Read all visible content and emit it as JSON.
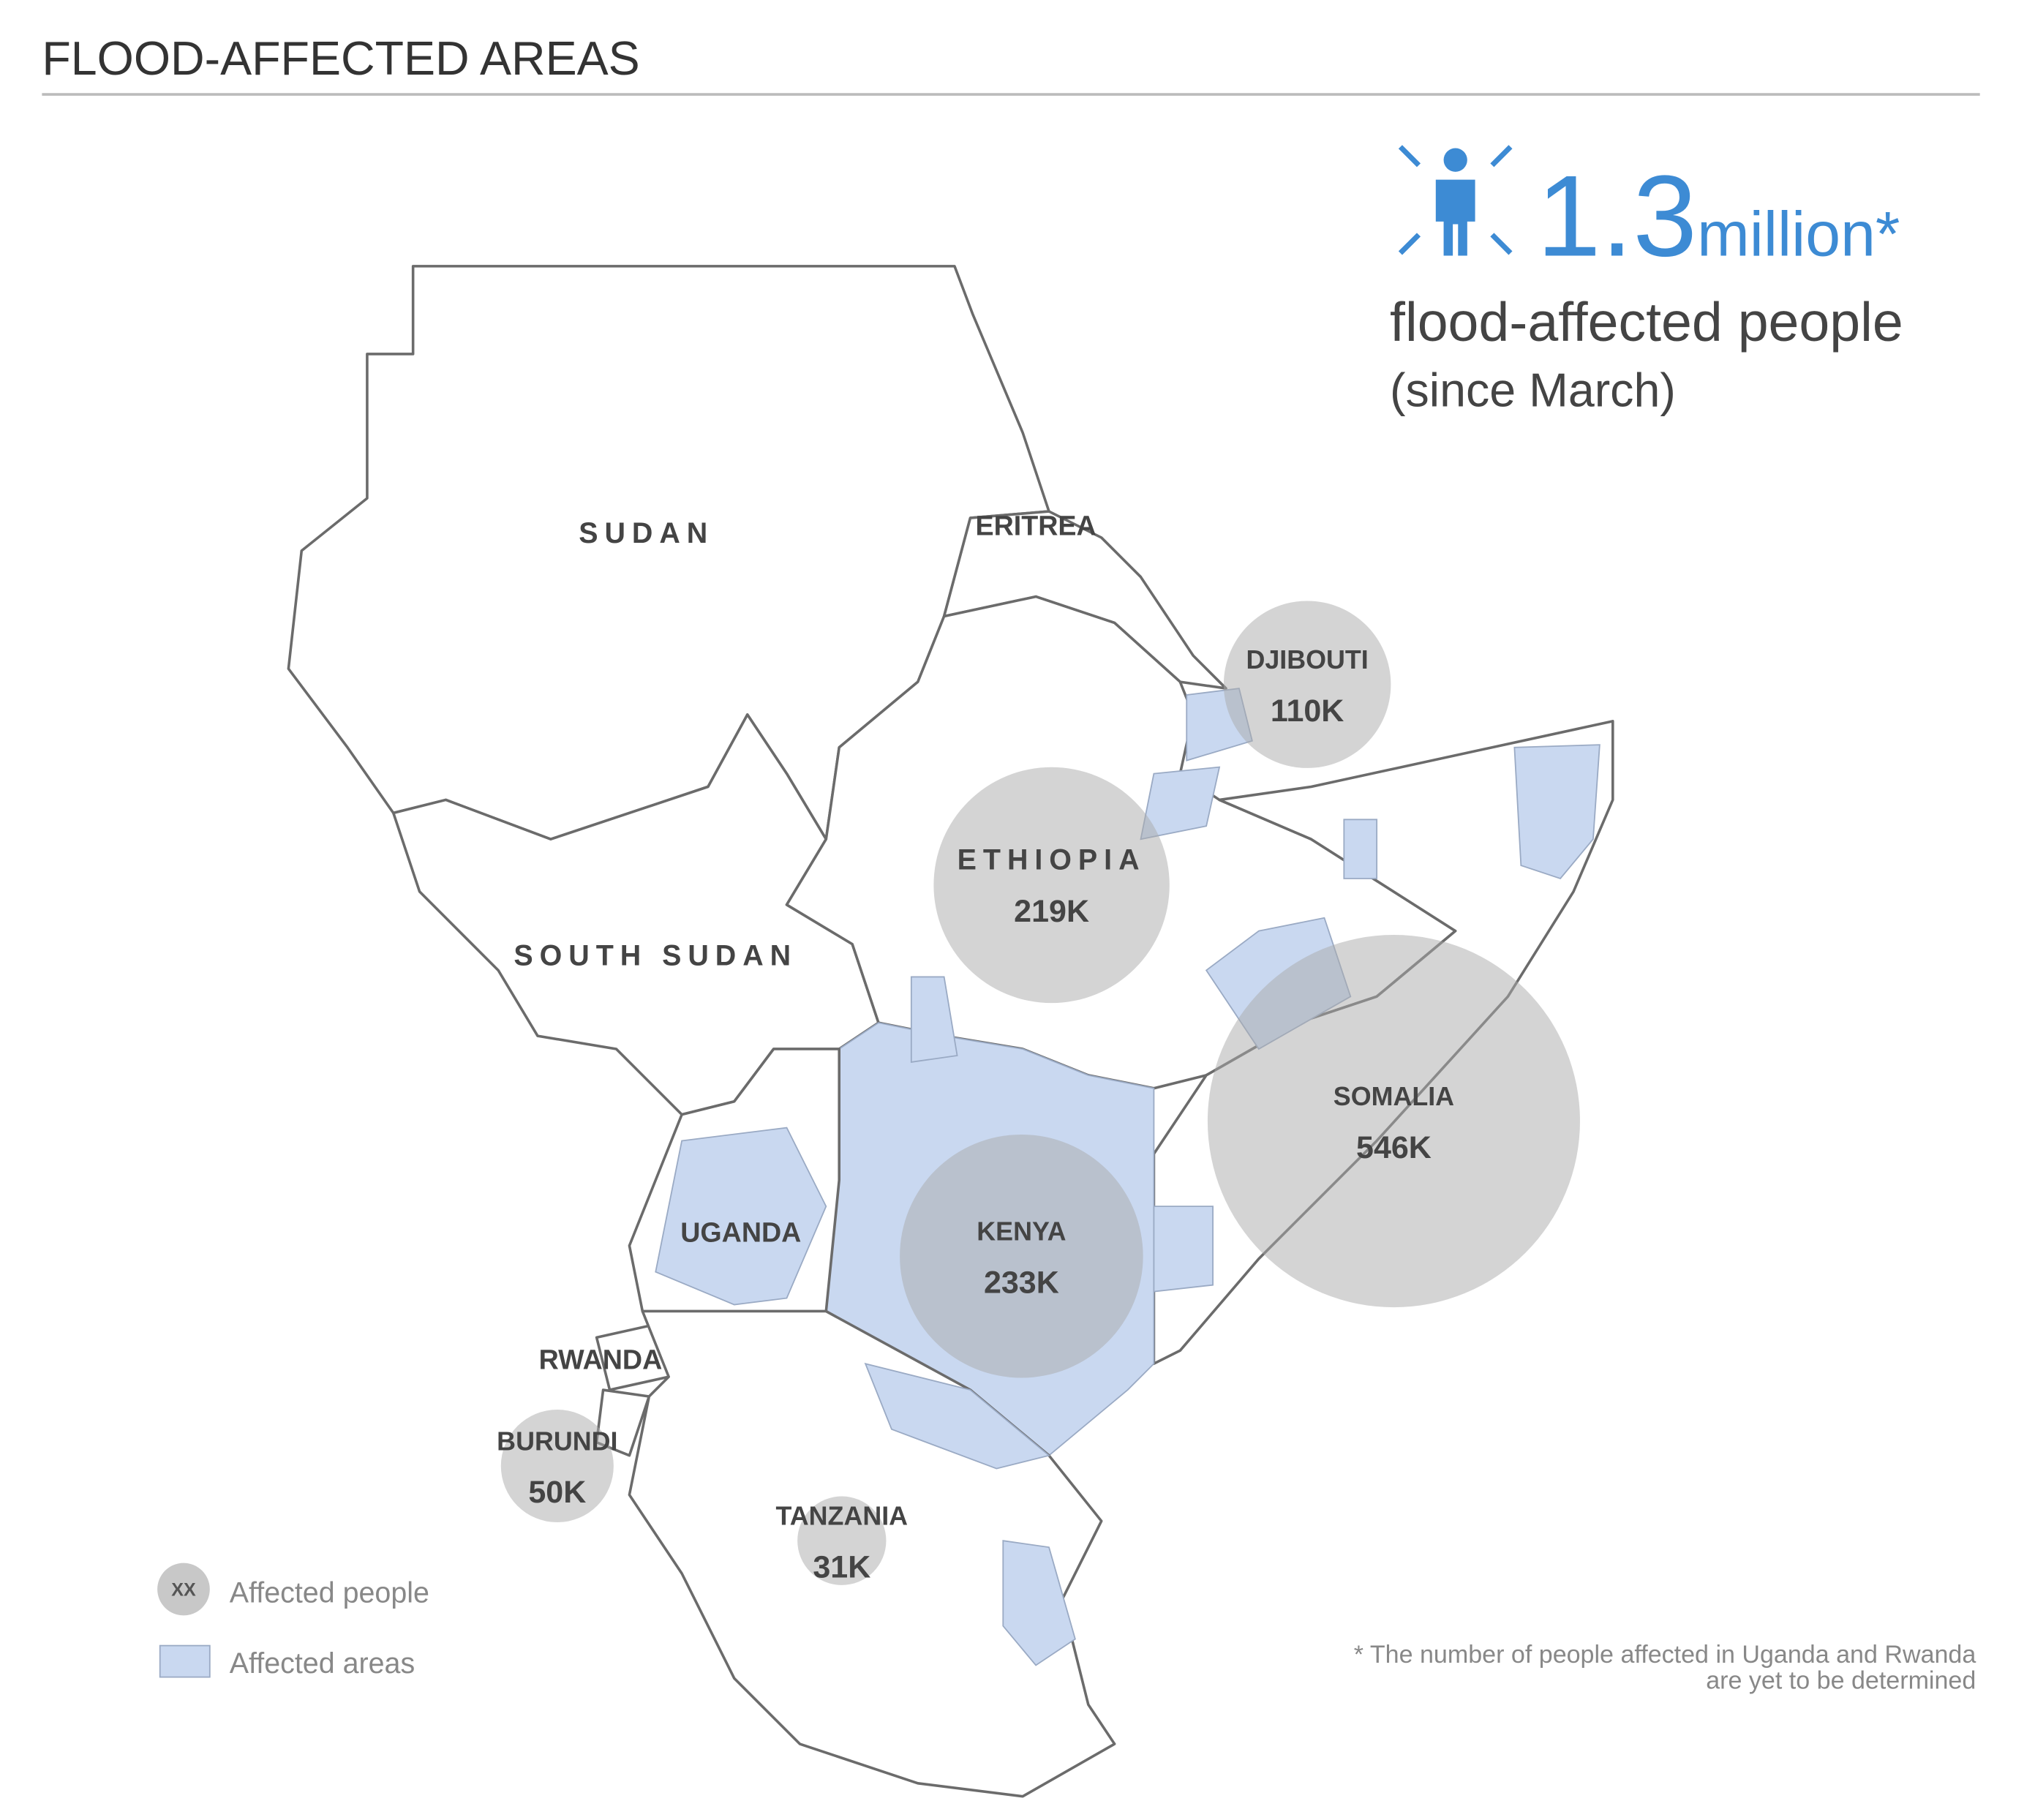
{
  "header": {
    "title": "FLOOD-AFFECTED AREAS"
  },
  "headline": {
    "value": "1.3",
    "unit": "million*",
    "label": "flood-affected people",
    "period": "(since March)"
  },
  "map": {
    "country_labels": [
      "SUDAN",
      "SOUTH SUDAN",
      "ERITREA",
      "UGANDA",
      "RWANDA"
    ],
    "bubbles": {
      "names": [
        "DJIBOUTI",
        "ETHIOPIA",
        "SOMALIA",
        "KENYA",
        "BURUNDI",
        "TANZANIA"
      ],
      "values": [
        110000,
        219000,
        546000,
        233000,
        50000,
        31000
      ],
      "value_labels": [
        "110K",
        "219K",
        "546K",
        "233K",
        "50K",
        "31K"
      ]
    }
  },
  "legend": {
    "items": [
      {
        "symbol": "XX",
        "label": "Affected people"
      },
      {
        "label": "Affected areas"
      }
    ]
  },
  "footnote": [
    "* The number of people affected in Uganda and Rwanda",
    "are yet to be determined"
  ]
}
